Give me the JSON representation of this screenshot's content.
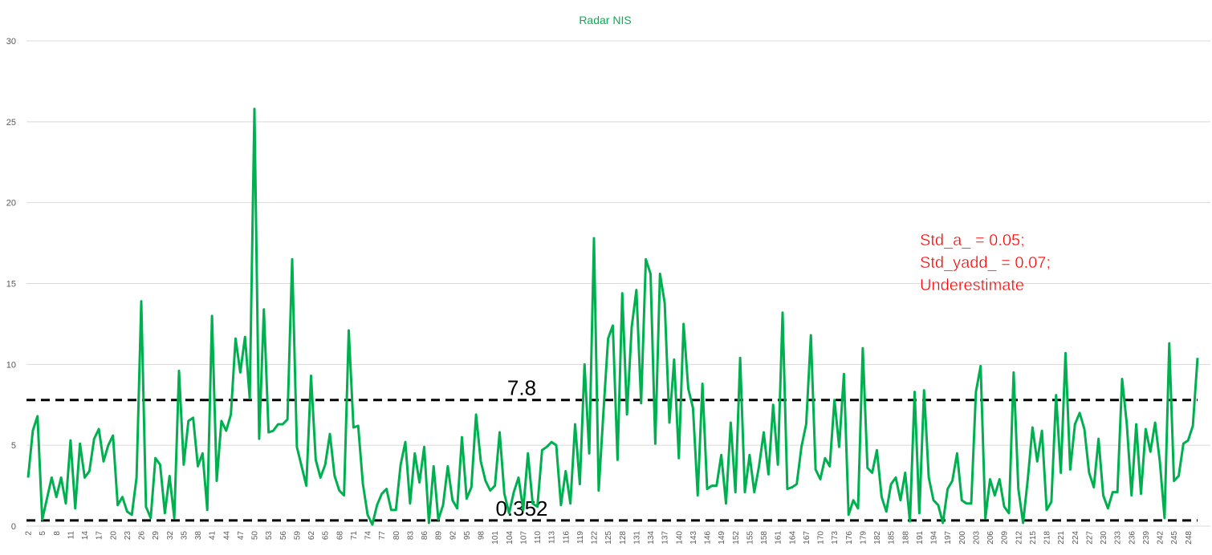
{
  "chart_data": {
    "type": "line",
    "title": "Radar NIS",
    "xlabel": "",
    "ylabel": "",
    "ylim": [
      0,
      30
    ],
    "yticks": [
      0,
      5,
      10,
      15,
      20,
      25,
      30
    ],
    "x_start": 2,
    "x_end": 250,
    "x_tick_step": 3,
    "grid": "horizontal",
    "series": [
      {
        "color": "#00b050",
        "values": [
          3.0,
          5.9,
          6.8,
          0.4,
          1.7,
          3.0,
          1.8,
          3.0,
          1.4,
          5.3,
          1.1,
          5.1,
          3.0,
          3.4,
          5.4,
          6.0,
          4.0,
          5.0,
          5.6,
          1.3,
          1.8,
          0.9,
          0.7,
          3.0,
          13.9,
          1.2,
          0.5,
          4.2,
          3.8,
          0.8,
          3.1,
          0.5,
          9.6,
          3.8,
          6.5,
          6.7,
          3.7,
          4.5,
          1.0,
          13.0,
          2.8,
          6.5,
          5.9,
          6.9,
          11.6,
          9.5,
          11.7,
          7.9,
          25.8,
          5.4,
          13.4,
          5.8,
          5.9,
          6.3,
          6.3,
          6.6,
          16.5,
          4.9,
          3.7,
          2.5,
          9.3,
          4.1,
          3.0,
          3.8,
          5.7,
          3.1,
          2.2,
          1.9,
          12.1,
          6.1,
          6.2,
          2.6,
          0.7,
          0.1,
          1.3,
          2.0,
          2.3,
          1.0,
          1.0,
          3.8,
          5.2,
          1.4,
          4.5,
          2.7,
          4.9,
          0.2,
          3.7,
          0.4,
          1.3,
          3.7,
          1.6,
          1.1,
          5.5,
          1.7,
          2.4,
          6.9,
          4.0,
          2.8,
          2.2,
          2.5,
          5.8,
          2.0,
          0.8,
          2.1,
          3.0,
          1.0,
          4.5,
          1.4,
          1.2,
          4.7,
          4.9,
          5.2,
          5.0,
          1.3,
          3.4,
          1.4,
          6.3,
          2.6,
          10.0,
          4.5,
          17.8,
          2.2,
          7.0,
          11.6,
          12.4,
          4.1,
          14.4,
          6.9,
          12.3,
          14.6,
          7.6,
          16.5,
          15.6,
          5.1,
          15.6,
          13.8,
          6.4,
          10.3,
          4.2,
          12.5,
          8.5,
          7.3,
          1.9,
          8.8,
          2.3,
          2.5,
          2.5,
          4.4,
          1.4,
          6.4,
          2.1,
          10.4,
          2.1,
          4.4,
          2.1,
          3.7,
          5.8,
          3.2,
          7.5,
          3.8,
          13.2,
          2.3,
          2.4,
          2.6,
          4.9,
          6.3,
          11.8,
          3.5,
          2.9,
          4.2,
          3.7,
          7.8,
          4.9,
          9.4,
          0.7,
          1.6,
          1.1,
          11.0,
          3.6,
          3.3,
          4.7,
          1.8,
          0.9,
          2.6,
          3.0,
          1.6,
          3.3,
          0.3,
          8.3,
          0.8,
          8.4,
          3.0,
          1.6,
          1.3,
          0.2,
          2.3,
          2.8,
          4.5,
          1.6,
          1.4,
          1.4,
          8.3,
          9.9,
          0.5,
          2.9,
          1.9,
          2.9,
          1.2,
          0.8,
          9.5,
          2.3,
          0.2,
          2.9,
          6.1,
          4.0,
          5.9,
          1.0,
          1.5,
          8.1,
          3.3,
          10.7,
          3.5,
          6.3,
          7.0,
          6.0,
          3.3,
          2.4,
          5.4,
          1.9,
          1.1,
          2.1,
          2.1,
          9.1,
          6.3,
          1.9,
          6.3,
          2.0,
          6.0,
          4.6,
          6.4,
          4.0,
          0.5,
          11.3,
          2.8,
          3.1,
          5.1,
          5.3,
          6.2,
          10.4
        ]
      }
    ],
    "reference_lines": [
      {
        "value": 7.8,
        "label": "7.8",
        "style": "dashed",
        "color": "#000000"
      },
      {
        "value": 0.352,
        "label": "0.352",
        "style": "dashed",
        "color": "#000000"
      }
    ],
    "annotation": {
      "lines": [
        "Std_a_ = 0.05;",
        "Std_yadd_ = 0.07;",
        "Underestimate"
      ],
      "color": "#ff0000"
    }
  }
}
